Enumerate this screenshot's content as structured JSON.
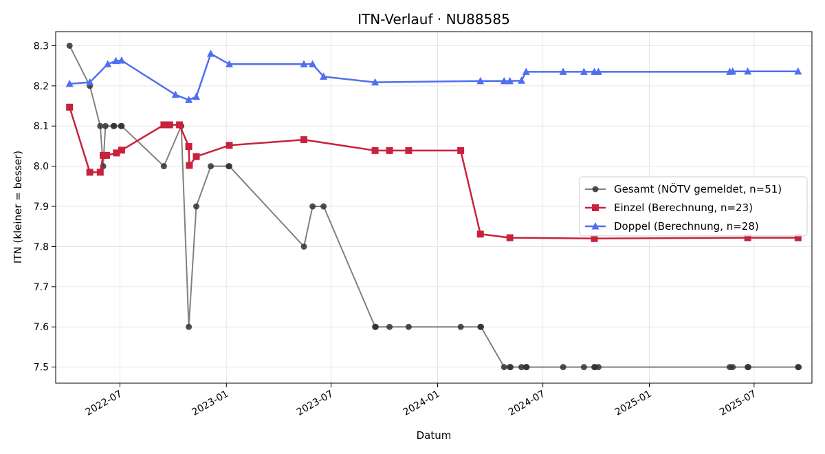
{
  "chart_data": {
    "type": "line",
    "title": "ITN-Verlauf · NU88585",
    "xlabel": "Datum",
    "ylabel": "ITN  (kleiner = besser)",
    "xlim": [
      "2022-03-12",
      "2025-10-09"
    ],
    "ylim": [
      7.46,
      8.335
    ],
    "x_ticks": [
      "2022-07",
      "2023-01",
      "2023-07",
      "2024-01",
      "2024-07",
      "2025-01",
      "2025-07"
    ],
    "y_ticks": [
      "7.5",
      "7.6",
      "7.7",
      "7.8",
      "7.9",
      "8.0",
      "8.1",
      "8.2",
      "8.3"
    ],
    "grid": true,
    "legend_position": "center-right",
    "series": [
      {
        "name": "Gesamt (NÖTV gemeldet, n=51)",
        "color": "#555555",
        "marker": "circle",
        "points": [
          [
            "2022-04-05",
            8.3
          ],
          [
            "2022-05-10",
            8.2
          ],
          [
            "2022-05-28",
            8.1
          ],
          [
            "2022-06-02",
            8.0
          ],
          [
            "2022-06-06",
            8.1
          ],
          [
            "2022-06-20",
            8.1
          ],
          [
            "2022-06-21",
            8.1
          ],
          [
            "2022-07-03",
            8.1
          ],
          [
            "2022-07-04",
            8.1
          ],
          [
            "2022-09-15",
            8.0
          ],
          [
            "2022-10-15",
            8.1
          ],
          [
            "2022-10-28",
            7.6
          ],
          [
            "2022-11-10",
            7.9
          ],
          [
            "2022-12-05",
            8.0
          ],
          [
            "2023-01-05",
            8.0
          ],
          [
            "2023-01-06",
            8.0
          ],
          [
            "2023-05-15",
            7.8
          ],
          [
            "2023-05-30",
            7.9
          ],
          [
            "2023-06-18",
            7.9
          ],
          [
            "2023-09-15",
            7.6
          ],
          [
            "2023-09-16",
            7.6
          ],
          [
            "2023-10-10",
            7.6
          ],
          [
            "2023-11-12",
            7.6
          ],
          [
            "2024-02-10",
            7.6
          ],
          [
            "2024-03-15",
            7.6
          ],
          [
            "2024-03-16",
            7.6
          ],
          [
            "2024-04-25",
            7.5
          ],
          [
            "2024-05-05",
            7.5
          ],
          [
            "2024-05-06",
            7.5
          ],
          [
            "2024-05-25",
            7.5
          ],
          [
            "2024-06-02",
            7.5
          ],
          [
            "2024-06-03",
            7.5
          ],
          [
            "2024-08-05",
            7.5
          ],
          [
            "2024-09-10",
            7.5
          ],
          [
            "2024-09-28",
            7.5
          ],
          [
            "2024-09-29",
            7.5
          ],
          [
            "2024-10-05",
            7.5
          ],
          [
            "2025-05-20",
            7.5
          ],
          [
            "2025-05-25",
            7.5
          ],
          [
            "2025-06-20",
            7.5
          ],
          [
            "2025-06-21",
            7.5
          ],
          [
            "2025-09-15",
            7.5
          ],
          [
            "2025-09-16",
            7.5
          ]
        ]
      },
      {
        "name": "Einzel (Berechnung, n=23)",
        "color": "#c9213c",
        "marker": "square",
        "points": [
          [
            "2022-04-05",
            8.147
          ],
          [
            "2022-05-10",
            7.985
          ],
          [
            "2022-05-28",
            7.985
          ],
          [
            "2022-06-02",
            8.027
          ],
          [
            "2022-06-08",
            8.027
          ],
          [
            "2022-06-25",
            8.033
          ],
          [
            "2022-07-04",
            8.04
          ],
          [
            "2022-09-15",
            8.103
          ],
          [
            "2022-09-25",
            8.103
          ],
          [
            "2022-10-12",
            8.103
          ],
          [
            "2022-10-28",
            8.049
          ],
          [
            "2022-10-29",
            8.002
          ],
          [
            "2022-11-10",
            8.024
          ],
          [
            "2023-01-06",
            8.052
          ],
          [
            "2023-05-15",
            8.066
          ],
          [
            "2023-09-15",
            8.039
          ],
          [
            "2023-10-10",
            8.039
          ],
          [
            "2023-11-12",
            8.039
          ],
          [
            "2024-02-10",
            8.039
          ],
          [
            "2024-03-15",
            7.831
          ],
          [
            "2024-05-05",
            7.822
          ],
          [
            "2024-09-28",
            7.82
          ],
          [
            "2025-06-20",
            7.822
          ],
          [
            "2025-09-15",
            7.822
          ]
        ]
      },
      {
        "name": "Doppel (Berechnung, n=28)",
        "color": "#4f6ef0",
        "marker": "triangle",
        "points": [
          [
            "2022-04-05",
            8.205
          ],
          [
            "2022-05-10",
            8.209
          ],
          [
            "2022-06-10",
            8.254
          ],
          [
            "2022-06-24",
            8.262
          ],
          [
            "2022-07-04",
            8.263
          ],
          [
            "2022-10-05",
            8.178
          ],
          [
            "2022-10-28",
            8.165
          ],
          [
            "2022-11-10",
            8.173
          ],
          [
            "2022-12-05",
            8.28
          ],
          [
            "2023-01-06",
            8.254
          ],
          [
            "2023-05-15",
            8.254
          ],
          [
            "2023-05-30",
            8.254
          ],
          [
            "2023-06-18",
            8.223
          ],
          [
            "2023-09-15",
            8.209
          ],
          [
            "2024-03-15",
            8.212
          ],
          [
            "2024-04-25",
            8.212
          ],
          [
            "2024-05-05",
            8.212
          ],
          [
            "2024-05-25",
            8.213
          ],
          [
            "2024-06-02",
            8.235
          ],
          [
            "2024-08-05",
            8.235
          ],
          [
            "2024-09-10",
            8.235
          ],
          [
            "2024-09-28",
            8.235
          ],
          [
            "2024-10-05",
            8.235
          ],
          [
            "2025-05-20",
            8.235
          ],
          [
            "2025-05-25",
            8.236
          ],
          [
            "2025-06-20",
            8.236
          ],
          [
            "2025-09-15",
            8.236
          ]
        ]
      }
    ]
  }
}
